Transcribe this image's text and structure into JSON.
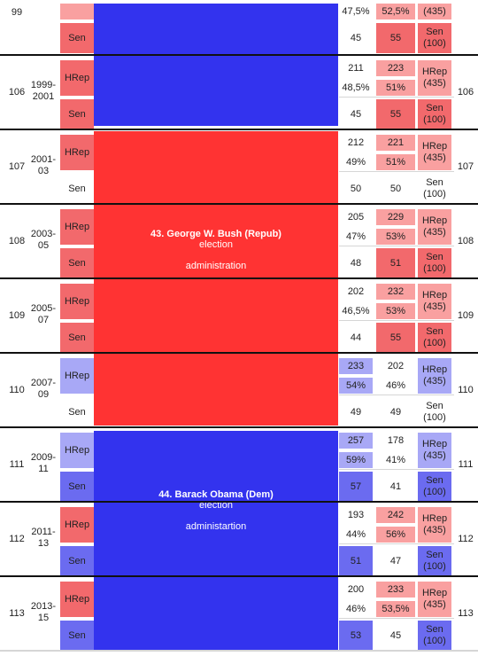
{
  "colors": {
    "dem_admin": "#3333ee",
    "rep_admin": "#ff3333",
    "rep_strong": "#f2696c",
    "rep_light": "#f9a0a0",
    "dem_strong": "#6b6bf0",
    "dem_light": "#a8a8f6"
  },
  "top_row": {
    "congress": "99",
    "hrep": {
      "c1": "47,5%",
      "c2": "52,5%",
      "c3": "(435)"
    },
    "sen": {
      "label": "Sen",
      "c1": "45",
      "c2": "55",
      "c3": "Sen (100)"
    }
  },
  "rows": [
    {
      "congress": "106",
      "years": "1999-2001",
      "hrep_label": "HRep",
      "sen_label": "Sen",
      "h_seats": [
        "211",
        "223"
      ],
      "h_pct": [
        "48,5%",
        "51%"
      ],
      "h_total": "HRep (435)",
      "s_seats": [
        "45",
        "55"
      ],
      "s_total": "Sen (100)"
    },
    {
      "congress": "107",
      "years": "2001-03",
      "hrep_label": "HRep",
      "sen_label": "Sen",
      "h_seats": [
        "212",
        "221"
      ],
      "h_pct": [
        "49%",
        "51%"
      ],
      "h_total": "HRep (435)",
      "s_seats": [
        "50",
        "50"
      ],
      "s_total": "Sen (100)"
    },
    {
      "congress": "108",
      "years": "2003-05",
      "hrep_label": "HRep",
      "sen_label": "Sen",
      "h_seats": [
        "205",
        "229"
      ],
      "h_pct": [
        "47%",
        "53%"
      ],
      "h_total": "HRep (435)",
      "s_seats": [
        "48",
        "51"
      ],
      "s_total": "Sen (100)"
    },
    {
      "congress": "109",
      "years": "2005-07",
      "hrep_label": "HRep",
      "sen_label": "Sen",
      "h_seats": [
        "202",
        "232"
      ],
      "h_pct": [
        "46,5%",
        "53%"
      ],
      "h_total": "HRep (435)",
      "s_seats": [
        "44",
        "55"
      ],
      "s_total": "Sen (100)"
    },
    {
      "congress": "110",
      "years": "2007-09",
      "hrep_label": "HRep",
      "sen_label": "Sen",
      "h_seats": [
        "233",
        "202"
      ],
      "h_pct": [
        "54%",
        "46%"
      ],
      "h_total": "HRep (435)",
      "s_seats": [
        "49",
        "49"
      ],
      "s_total": "Sen (100)"
    },
    {
      "congress": "111",
      "years": "2009-11",
      "hrep_label": "HRep",
      "sen_label": "Sen",
      "h_seats": [
        "257",
        "178"
      ],
      "h_pct": [
        "59%",
        "41%"
      ],
      "h_total": "HRep (435)",
      "s_seats": [
        "57",
        "41"
      ],
      "s_total": "Sen (100)"
    },
    {
      "congress": "112",
      "years": "2011-13",
      "hrep_label": "HRep",
      "sen_label": "Sen",
      "h_seats": [
        "193",
        "242"
      ],
      "h_pct": [
        "44%",
        "56%"
      ],
      "h_total": "HRep (435)",
      "s_seats": [
        "51",
        "47"
      ],
      "s_total": "Sen (100)"
    },
    {
      "congress": "113",
      "years": "2013-15",
      "hrep_label": "HRep",
      "sen_label": "Sen",
      "h_seats": [
        "200",
        "233"
      ],
      "h_pct": [
        "46%",
        "53,5%"
      ],
      "h_total": "HRep (435)",
      "s_seats": [
        "53",
        "45"
      ],
      "s_total": "Sen (100)"
    }
  ],
  "administrations": [
    {
      "name": "43. George W. Bush (Repub)",
      "line2": "election",
      "line3": "administration"
    },
    {
      "name": "44. Barack Obama (Dem)",
      "line2": "election",
      "line3": "administartion"
    }
  ]
}
